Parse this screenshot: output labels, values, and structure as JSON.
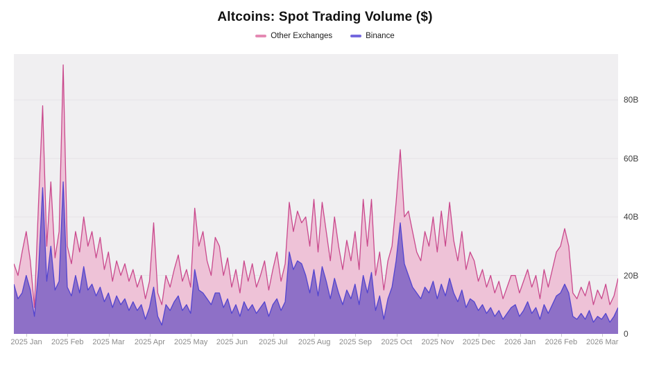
{
  "title": "Altcoins: Spot Trading Volume ($)",
  "legend": [
    {
      "label": "Other Exchanges",
      "color": "#e489b3"
    },
    {
      "label": "Binance",
      "color": "#7468de"
    }
  ],
  "colors": {
    "other_line": "#c9488c",
    "other_fill": "#eec2d7",
    "binance_line": "#5244cf",
    "binance_fill": "#8e70c7",
    "plot_bg": "#f0eff1",
    "gridline": "#e5e3e7"
  },
  "chart_data": {
    "type": "area",
    "title": "Altcoins: Spot Trading Volume ($)",
    "subtitle": "",
    "render_style": "two overlaid area series from zero; Binance drawn on top of Other Exchanges",
    "x_unit": "days (daily values), Jan 2025 - Mar 2026",
    "x_tick_labels": [
      "2025 Jan",
      "2025 Feb",
      "2025 Mar",
      "2025 Apr",
      "2025 May",
      "2025 Jun",
      "2025 Jul",
      "2025 Aug",
      "2025 Sep",
      "2025 Oct",
      "2025 Nov",
      "2025 Dec",
      "2026 Jan",
      "2026 Feb",
      "2026 Mar"
    ],
    "y_ticks": [
      0,
      20,
      40,
      60,
      80
    ],
    "y_tick_labels": [
      "0",
      "20B",
      "40B",
      "60B",
      "80B"
    ],
    "ylim": [
      0,
      95.7
    ],
    "grid": true,
    "legend_position": "top",
    "series": [
      {
        "name": "Other Exchanges",
        "values_unit": "billions USD",
        "values": [
          24,
          20,
          28,
          35,
          25,
          9,
          45,
          78,
          30,
          52,
          26,
          35,
          92,
          30,
          24,
          35,
          28,
          40,
          30,
          35,
          26,
          33,
          22,
          28,
          18,
          25,
          20,
          24,
          18,
          22,
          16,
          20,
          12,
          18,
          38,
          14,
          10,
          20,
          16,
          22,
          27,
          18,
          22,
          16,
          43,
          30,
          35,
          25,
          20,
          33,
          30,
          20,
          26,
          16,
          22,
          14,
          25,
          18,
          24,
          16,
          20,
          25,
          15,
          22,
          28,
          18,
          24,
          45,
          35,
          42,
          38,
          40,
          30,
          46,
          28,
          45,
          35,
          25,
          40,
          30,
          22,
          32,
          25,
          35,
          22,
          46,
          30,
          46,
          20,
          28,
          15,
          25,
          30,
          45,
          63,
          40,
          42,
          35,
          28,
          25,
          35,
          30,
          40,
          28,
          42,
          30,
          45,
          32,
          25,
          35,
          22,
          28,
          25,
          18,
          22,
          16,
          20,
          14,
          18,
          12,
          16,
          20,
          20,
          14,
          18,
          22,
          16,
          20,
          12,
          22,
          16,
          22,
          28,
          30,
          36,
          30,
          14,
          12,
          16,
          13,
          18,
          10,
          15,
          12,
          17,
          10,
          13,
          19
        ]
      },
      {
        "name": "Binance",
        "values_unit": "billions USD",
        "values": [
          17,
          12,
          14,
          20,
          15,
          6,
          22,
          50,
          18,
          30,
          15,
          18,
          52,
          16,
          13,
          20,
          14,
          23,
          15,
          17,
          13,
          16,
          11,
          14,
          9,
          13,
          10,
          12,
          8,
          11,
          8,
          10,
          5,
          9,
          16,
          6,
          3,
          10,
          8,
          11,
          13,
          8,
          10,
          7,
          22,
          15,
          14,
          12,
          10,
          14,
          14,
          9,
          12,
          7,
          10,
          6,
          11,
          8,
          10,
          7,
          9,
          11,
          6,
          10,
          12,
          8,
          11,
          28,
          22,
          25,
          24,
          20,
          14,
          22,
          13,
          23,
          18,
          12,
          19,
          14,
          10,
          15,
          12,
          17,
          10,
          20,
          14,
          21,
          8,
          13,
          5,
          12,
          16,
          25,
          38,
          24,
          20,
          16,
          14,
          12,
          16,
          14,
          18,
          12,
          17,
          13,
          19,
          14,
          11,
          15,
          9,
          12,
          11,
          8,
          10,
          7,
          9,
          6,
          8,
          5,
          7,
          9,
          10,
          6,
          8,
          11,
          7,
          9,
          5,
          10,
          7,
          10,
          13,
          14,
          17,
          14,
          6,
          5,
          7,
          5,
          8,
          4,
          6,
          5,
          7,
          4,
          6,
          9
        ]
      }
    ]
  }
}
